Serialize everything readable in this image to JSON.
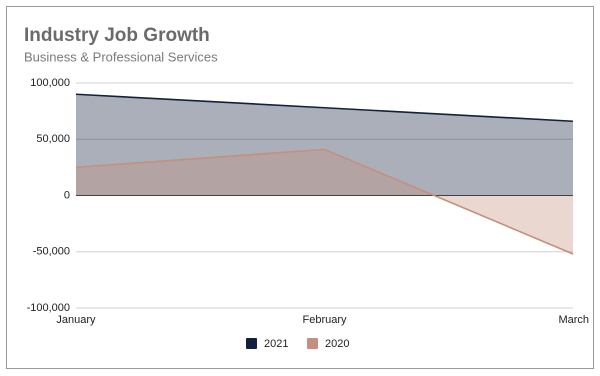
{
  "chart_data": {
    "type": "area",
    "title": "Industry Job Growth",
    "subtitle": "Business & Professional Services",
    "categories": [
      "January",
      "February",
      "March"
    ],
    "series": [
      {
        "name": "2021",
        "color": "#13203d",
        "values": [
          90000,
          78000,
          66000
        ]
      },
      {
        "name": "2020",
        "color": "#c4907e",
        "values": [
          25000,
          41000,
          -52000
        ]
      }
    ],
    "ylim": [
      -100000,
      100000
    ],
    "yticks": [
      {
        "value": -100000,
        "label": "-100,000"
      },
      {
        "value": -50000,
        "label": "-50,000"
      },
      0,
      {
        "value": 50000,
        "label": "50,000"
      },
      {
        "value": 100000,
        "label": "100,000"
      }
    ],
    "grid": true,
    "legend": "bottom"
  }
}
